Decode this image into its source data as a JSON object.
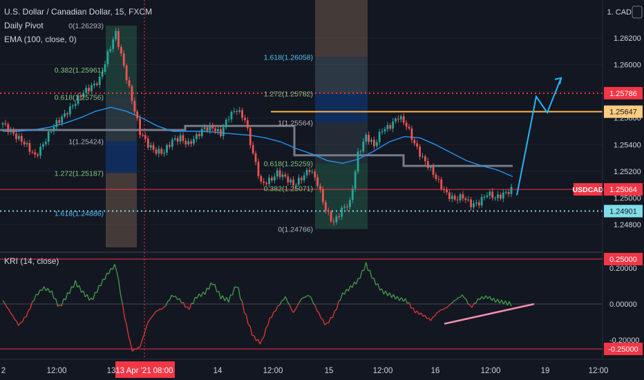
{
  "header": {
    "symbol_line": "U.S. Dollar / Canadian Dollar, 15, FXCM",
    "indicator_pivot": "Daily Pivot",
    "indicator_ema": "EMA (100, close, 0)"
  },
  "oscillator": {
    "label": "KRI (14, close)"
  },
  "colors": {
    "background": "#131722",
    "up_candle": "#26a69a",
    "down_candle": "#ef5350",
    "ema_line": "#2196f3",
    "pivot_line": "#787b86",
    "resistance_dotted": "#f23645",
    "support_dotted": "#80deea",
    "orange_level": "#ffb74d",
    "projection": "#29b6f6",
    "trendline": "#f48fb1"
  },
  "chart_data": [
    {
      "type": "candlestick",
      "title": "U.S. Dollar / Canadian Dollar, 15, FXCM",
      "currency_label": "CAD",
      "y_axis_ticks": [
        "1.26200",
        "1.26000",
        "1.25800",
        "1.25600",
        "1.25400",
        "1.25200",
        "1.25000",
        "1.24800"
      ],
      "ylim": [
        1.2472,
        1.2641
      ],
      "x_axis_ticks": [
        "2",
        "12:00",
        "13",
        "13 Apr '21",
        "08:00",
        "14",
        "12:00",
        "15",
        "12:00",
        "16",
        "12:00",
        "19",
        "12:00"
      ],
      "highlighted_x_tick": "13 Apr '21",
      "price_tags": [
        {
          "label": "1.25786",
          "value": 1.25786,
          "style": "red"
        },
        {
          "label": "1.25647",
          "value": 1.25647,
          "style": "orange"
        },
        {
          "label": "USDCAD",
          "value": 1.25064,
          "style": "red",
          "secondary": "1.25064"
        },
        {
          "label": "1.24901",
          "value": 1.24901,
          "style": "cyan"
        }
      ],
      "horizontal_levels": [
        {
          "value": 1.25786,
          "style": "dotted",
          "color": "#f23645"
        },
        {
          "value": 1.25647,
          "style": "solid",
          "color": "#ffb74d"
        },
        {
          "value": 1.25064,
          "style": "solid",
          "color": "#f23645"
        },
        {
          "value": 1.24901,
          "style": "dotted",
          "color": "#80deea"
        }
      ],
      "fib_zones": [
        {
          "labels": [
            {
              "text": "0(1.26293)",
              "value": 1.26293
            },
            {
              "text": "0.382(1.25961)",
              "value": 1.25961
            },
            {
              "text": "0.618(1.25756)",
              "value": 1.25756
            },
            {
              "text": "1(1.25424)",
              "value": 1.25424
            },
            {
              "text": "1.272(1.25187)",
              "value": 1.25187
            },
            {
              "text": "1.618(1.24886)",
              "value": 1.24886
            }
          ]
        },
        {
          "labels": [
            {
              "text": "1.618(1.26058)",
              "value": 1.26058
            },
            {
              "text": "1.272(1.25782)",
              "value": 1.25782
            },
            {
              "text": "1(1.25564)",
              "value": 1.25564
            },
            {
              "text": "0.618(1.25259)",
              "value": 1.25259
            },
            {
              "text": "0.382(1.25071)",
              "value": 1.25071
            },
            {
              "text": "0(1.24766)",
              "value": 1.24766
            }
          ]
        }
      ],
      "pivot_levels": [
        1.2551,
        1.2554,
        1.2532,
        1.2524
      ],
      "price_path": [
        1.2556,
        1.2551,
        1.2544,
        1.2538,
        1.2532,
        1.2541,
        1.255,
        1.2558,
        1.2566,
        1.2572,
        1.2578,
        1.2584,
        1.259,
        1.2607,
        1.2623,
        1.26,
        1.2574,
        1.2548,
        1.254,
        1.2536,
        1.2534,
        1.2542,
        1.2546,
        1.2541,
        1.2545,
        1.2552,
        1.2554,
        1.2548,
        1.256,
        1.2567,
        1.256,
        1.2532,
        1.251,
        1.2514,
        1.2519,
        1.2514,
        1.251,
        1.2516,
        1.2521,
        1.251,
        1.2492,
        1.2482,
        1.249,
        1.2496,
        1.2534,
        1.2546,
        1.2538,
        1.2552,
        1.2555,
        1.256,
        1.2554,
        1.2542,
        1.253,
        1.252,
        1.2512,
        1.2504,
        1.2498,
        1.25,
        1.2496,
        1.2497,
        1.2502,
        1.25,
        1.2504,
        1.2506
      ],
      "ema_path": [
        1.255,
        1.255,
        1.2551,
        1.2553,
        1.2556,
        1.256,
        1.2565,
        1.2568,
        1.2565,
        1.256,
        1.2554,
        1.255,
        1.255,
        1.255,
        1.2549,
        1.2548,
        1.2547,
        1.2545,
        1.2542,
        1.2537,
        1.2533,
        1.2528,
        1.2526,
        1.2529,
        1.2535,
        1.2542,
        1.2546,
        1.2545,
        1.254,
        1.2534,
        1.2528,
        1.2524,
        1.2521,
        1.2516
      ],
      "projection_path": [
        1.2502,
        1.2576,
        1.2564,
        1.259
      ],
      "oscillator": {
        "name": "KRI (14, close)",
        "y_axis_ticks": [
          "0.20000",
          "0.00000",
          "-0.20000"
        ],
        "ylim": [
          -0.32,
          0.3
        ],
        "level_tags": [
          {
            "label": "0.25000",
            "value": 0.25
          },
          {
            "label": "-0.25000",
            "value": -0.25
          }
        ],
        "levels": [
          0.25,
          0.0,
          -0.25
        ],
        "values": [
          0.02,
          -0.05,
          -0.12,
          -0.06,
          0.04,
          0.09,
          0.07,
          -0.02,
          0.05,
          0.12,
          0.06,
          0.02,
          0.1,
          0.17,
          0.22,
          -0.05,
          -0.26,
          -0.24,
          -0.1,
          -0.04,
          -0.02,
          0.05,
          0.02,
          -0.03,
          0.04,
          0.06,
          0.12,
          0.04,
          0.02,
          0.11,
          -0.05,
          -0.18,
          -0.22,
          -0.09,
          -0.02,
          0.04,
          -0.05,
          0.03,
          0.05,
          -0.04,
          -0.12,
          -0.06,
          0.05,
          0.09,
          0.13,
          0.22,
          0.13,
          0.07,
          0.05,
          0.03,
          0.02,
          -0.04,
          -0.06,
          -0.09,
          -0.04,
          -0.02,
          0.02,
          0.05,
          -0.02,
          0.03,
          0.04,
          0.02,
          0.01,
          0.0
        ],
        "trendline": [
          -0.11,
          0.0
        ]
      }
    }
  ]
}
